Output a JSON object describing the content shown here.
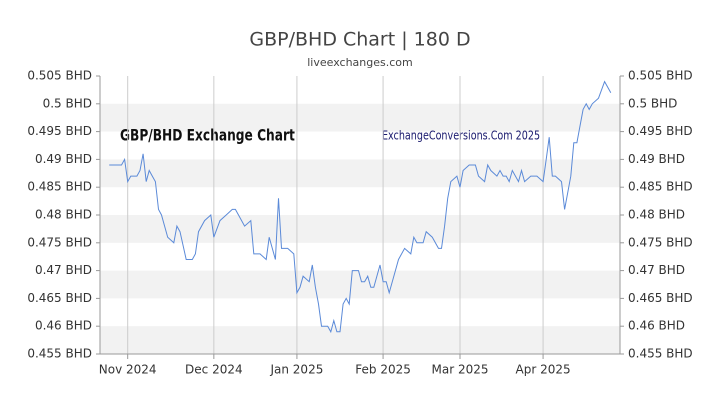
{
  "chart_data": {
    "type": "line",
    "title": "GBP/BHD Chart | 180 D",
    "subtitle": "liveexchanges.com",
    "annotations": [
      "GBP/BHD Exchange Chart",
      "ExchangeConversions.Com 2025"
    ],
    "x": [
      3,
      5,
      7,
      8,
      9,
      10,
      12,
      13,
      14,
      15,
      16,
      17,
      18,
      19,
      20,
      21,
      22,
      24,
      25,
      26,
      28,
      30,
      31,
      32,
      34,
      36,
      37,
      39,
      41,
      43,
      44,
      45,
      47,
      49,
      50,
      52,
      54,
      55,
      57,
      58,
      59,
      61,
      63,
      64,
      65,
      66,
      68,
      69,
      70,
      71,
      72,
      74,
      75,
      76,
      77,
      78,
      79,
      80,
      81,
      82,
      84,
      85,
      86,
      87,
      88,
      89,
      91,
      92,
      93,
      94,
      96,
      97,
      99,
      101,
      102,
      103,
      105,
      106,
      108,
      110,
      111,
      112,
      113,
      114,
      116,
      117,
      118,
      120,
      122,
      123,
      125,
      126,
      127,
      129,
      130,
      131,
      132,
      133,
      134,
      136,
      137,
      138,
      140,
      142,
      144,
      145,
      146,
      147,
      148,
      150,
      151,
      152,
      153,
      154,
      155,
      156,
      157,
      158,
      159,
      160,
      162,
      164,
      166
    ],
    "series": [
      {
        "name": "GBP/BHD",
        "color": "#5b8ad8",
        "values": [
          0.489,
          0.489,
          0.489,
          0.49,
          0.486,
          0.487,
          0.487,
          0.488,
          0.491,
          0.486,
          0.488,
          0.487,
          0.486,
          0.481,
          0.48,
          0.478,
          0.476,
          0.475,
          0.478,
          0.477,
          0.472,
          0.472,
          0.473,
          0.477,
          0.479,
          0.48,
          0.476,
          0.479,
          0.48,
          0.481,
          0.481,
          0.48,
          0.478,
          0.479,
          0.473,
          0.473,
          0.472,
          0.476,
          0.472,
          0.483,
          0.474,
          0.474,
          0.473,
          0.466,
          0.467,
          0.469,
          0.468,
          0.471,
          0.467,
          0.464,
          0.46,
          0.46,
          0.459,
          0.461,
          0.459,
          0.459,
          0.464,
          0.465,
          0.464,
          0.47,
          0.47,
          0.468,
          0.468,
          0.469,
          0.467,
          0.467,
          0.471,
          0.468,
          0.468,
          0.466,
          0.47,
          0.472,
          0.474,
          0.473,
          0.476,
          0.475,
          0.475,
          0.477,
          0.476,
          0.474,
          0.474,
          0.478,
          0.483,
          0.486,
          0.487,
          0.485,
          0.488,
          0.489,
          0.489,
          0.487,
          0.486,
          0.489,
          0.488,
          0.487,
          0.488,
          0.487,
          0.487,
          0.486,
          0.488,
          0.486,
          0.488,
          0.486,
          0.487,
          0.487,
          0.486,
          0.49,
          0.494,
          0.487,
          0.487,
          0.486,
          0.481,
          0.484,
          0.487,
          0.493,
          0.493,
          0.496,
          0.499,
          0.5,
          0.499,
          0.5,
          0.501,
          0.504,
          0.502
        ]
      }
    ],
    "xlim": [
      0,
      169
    ],
    "xticks": [
      {
        "value": 9,
        "label": "Nov 2024"
      },
      {
        "value": 37,
        "label": "Dec 2024"
      },
      {
        "value": 64,
        "label": "Jan 2025"
      },
      {
        "value": 92,
        "label": "Feb 2025"
      },
      {
        "value": 117,
        "label": "Mar 2025"
      },
      {
        "value": 144,
        "label": "Apr 2025"
      }
    ],
    "ylim": [
      0.455,
      0.505
    ],
    "yticks": [
      {
        "value": 0.505,
        "label": "0.505 BHD"
      },
      {
        "value": 0.5,
        "label": "0.5 BHD"
      },
      {
        "value": 0.495,
        "label": "0.495 BHD"
      },
      {
        "value": 0.49,
        "label": "0.49 BHD"
      },
      {
        "value": 0.485,
        "label": "0.485 BHD"
      },
      {
        "value": 0.48,
        "label": "0.48 BHD"
      },
      {
        "value": 0.475,
        "label": "0.475 BHD"
      },
      {
        "value": 0.47,
        "label": "0.47 BHD"
      },
      {
        "value": 0.465,
        "label": "0.465 BHD"
      },
      {
        "value": 0.46,
        "label": "0.46 BHD"
      },
      {
        "value": 0.455,
        "label": "0.455 BHD"
      }
    ],
    "y2lim": [
      0.455,
      0.505
    ],
    "y2ticks": [
      {
        "value": 0.505,
        "label": "0.505 BHD"
      },
      {
        "value": 0.5,
        "label": "0.5 BHD"
      },
      {
        "value": 0.495,
        "label": "0.495 BHD"
      },
      {
        "value": 0.49,
        "label": "0.49 BHD"
      },
      {
        "value": 0.485,
        "label": "0.485 BHD"
      },
      {
        "value": 0.48,
        "label": "0.48 BHD"
      },
      {
        "value": 0.475,
        "label": "0.475 BHD"
      },
      {
        "value": 0.47,
        "label": "0.47 BHD"
      },
      {
        "value": 0.465,
        "label": "0.465 BHD"
      },
      {
        "value": 0.46,
        "label": "0.46 BHD"
      },
      {
        "value": 0.455,
        "label": "0.455 BHD"
      }
    ],
    "grid": true
  }
}
